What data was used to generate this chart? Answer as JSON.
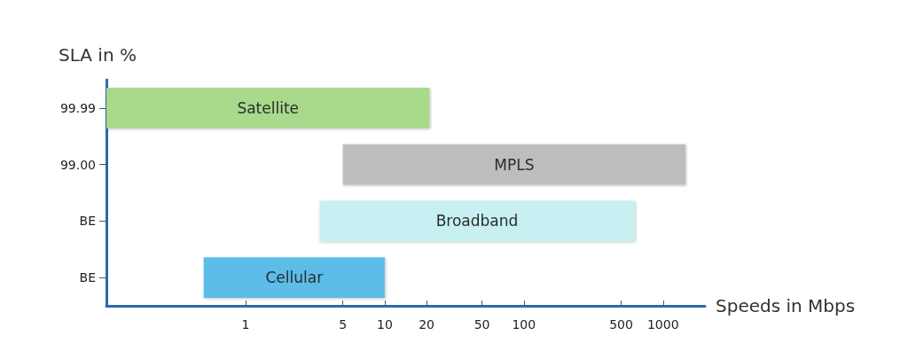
{
  "chart_data": {
    "type": "bar",
    "orientation": "horizontal",
    "xlabel": "Speeds in Mbps",
    "ylabel": "SLA in %",
    "categories": [
      "99.99",
      "99.00",
      "BE",
      "BE"
    ],
    "base": [
      0.1,
      5,
      3.4,
      0.5
    ],
    "values": [
      20.9,
      1445,
      621.6,
      9.5
    ],
    "colors": [
      "#a9d98b",
      "#bdbdbd",
      "#c8f0f3",
      "#5bbde9"
    ],
    "value_labels": [
      "Satellite",
      "MPLS",
      "Broadband",
      "Cellular"
    ],
    "xlim": [
      0.1,
      2000
    ],
    "log": "x",
    "xticks": [
      1,
      5,
      10,
      20,
      50,
      100,
      500,
      1000
    ],
    "grid": false
  }
}
